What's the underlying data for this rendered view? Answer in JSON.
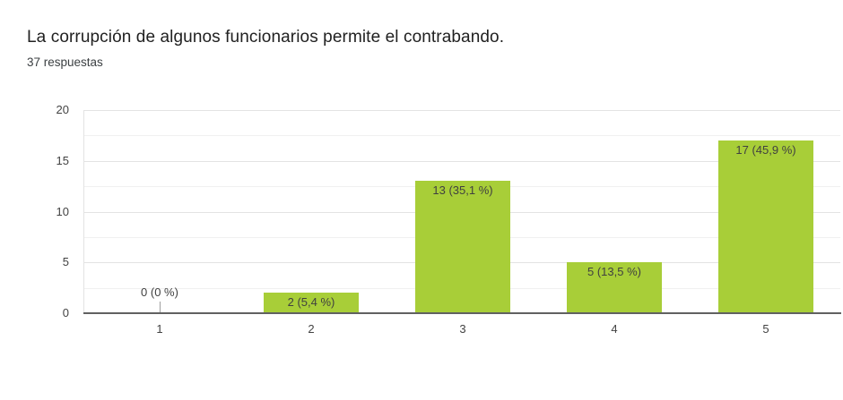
{
  "header": {
    "title": "La corrupción de algunos funcionarios permite el contrabando.",
    "subtitle": "37 respuestas"
  },
  "colors": {
    "bar": "#a8ce38",
    "baseline": "#616161",
    "grid_major": "#e3e3e3",
    "grid_minor": "#f0f0f0",
    "title_text": "#212121",
    "subtitle_text": "#3c4043",
    "axis_text": "#424242",
    "annotation_text": "#404040",
    "stem": "#9e9e9e",
    "background": "#ffffff"
  },
  "chart_data": {
    "type": "bar",
    "title": "La corrupción de algunos funcionarios permite el contrabando.",
    "subtitle": "37 respuestas",
    "total_responses": 37,
    "categories": [
      "1",
      "2",
      "3",
      "4",
      "5"
    ],
    "values": [
      0,
      2,
      13,
      5,
      17
    ],
    "percentages": [
      0,
      5.4,
      35.1,
      13.5,
      45.9
    ],
    "annotations": [
      "0 (0 %)",
      "2 (5,4 %)",
      "13 (35,1 %)",
      "5 (13,5 %)",
      "17 (45,9 %)"
    ],
    "xlabel": "",
    "ylabel": "",
    "ylim": [
      0,
      20
    ],
    "yticks": [
      0,
      5,
      10,
      15,
      20
    ],
    "minor_grid_step": 2.5,
    "grid": true,
    "legend": "none"
  }
}
